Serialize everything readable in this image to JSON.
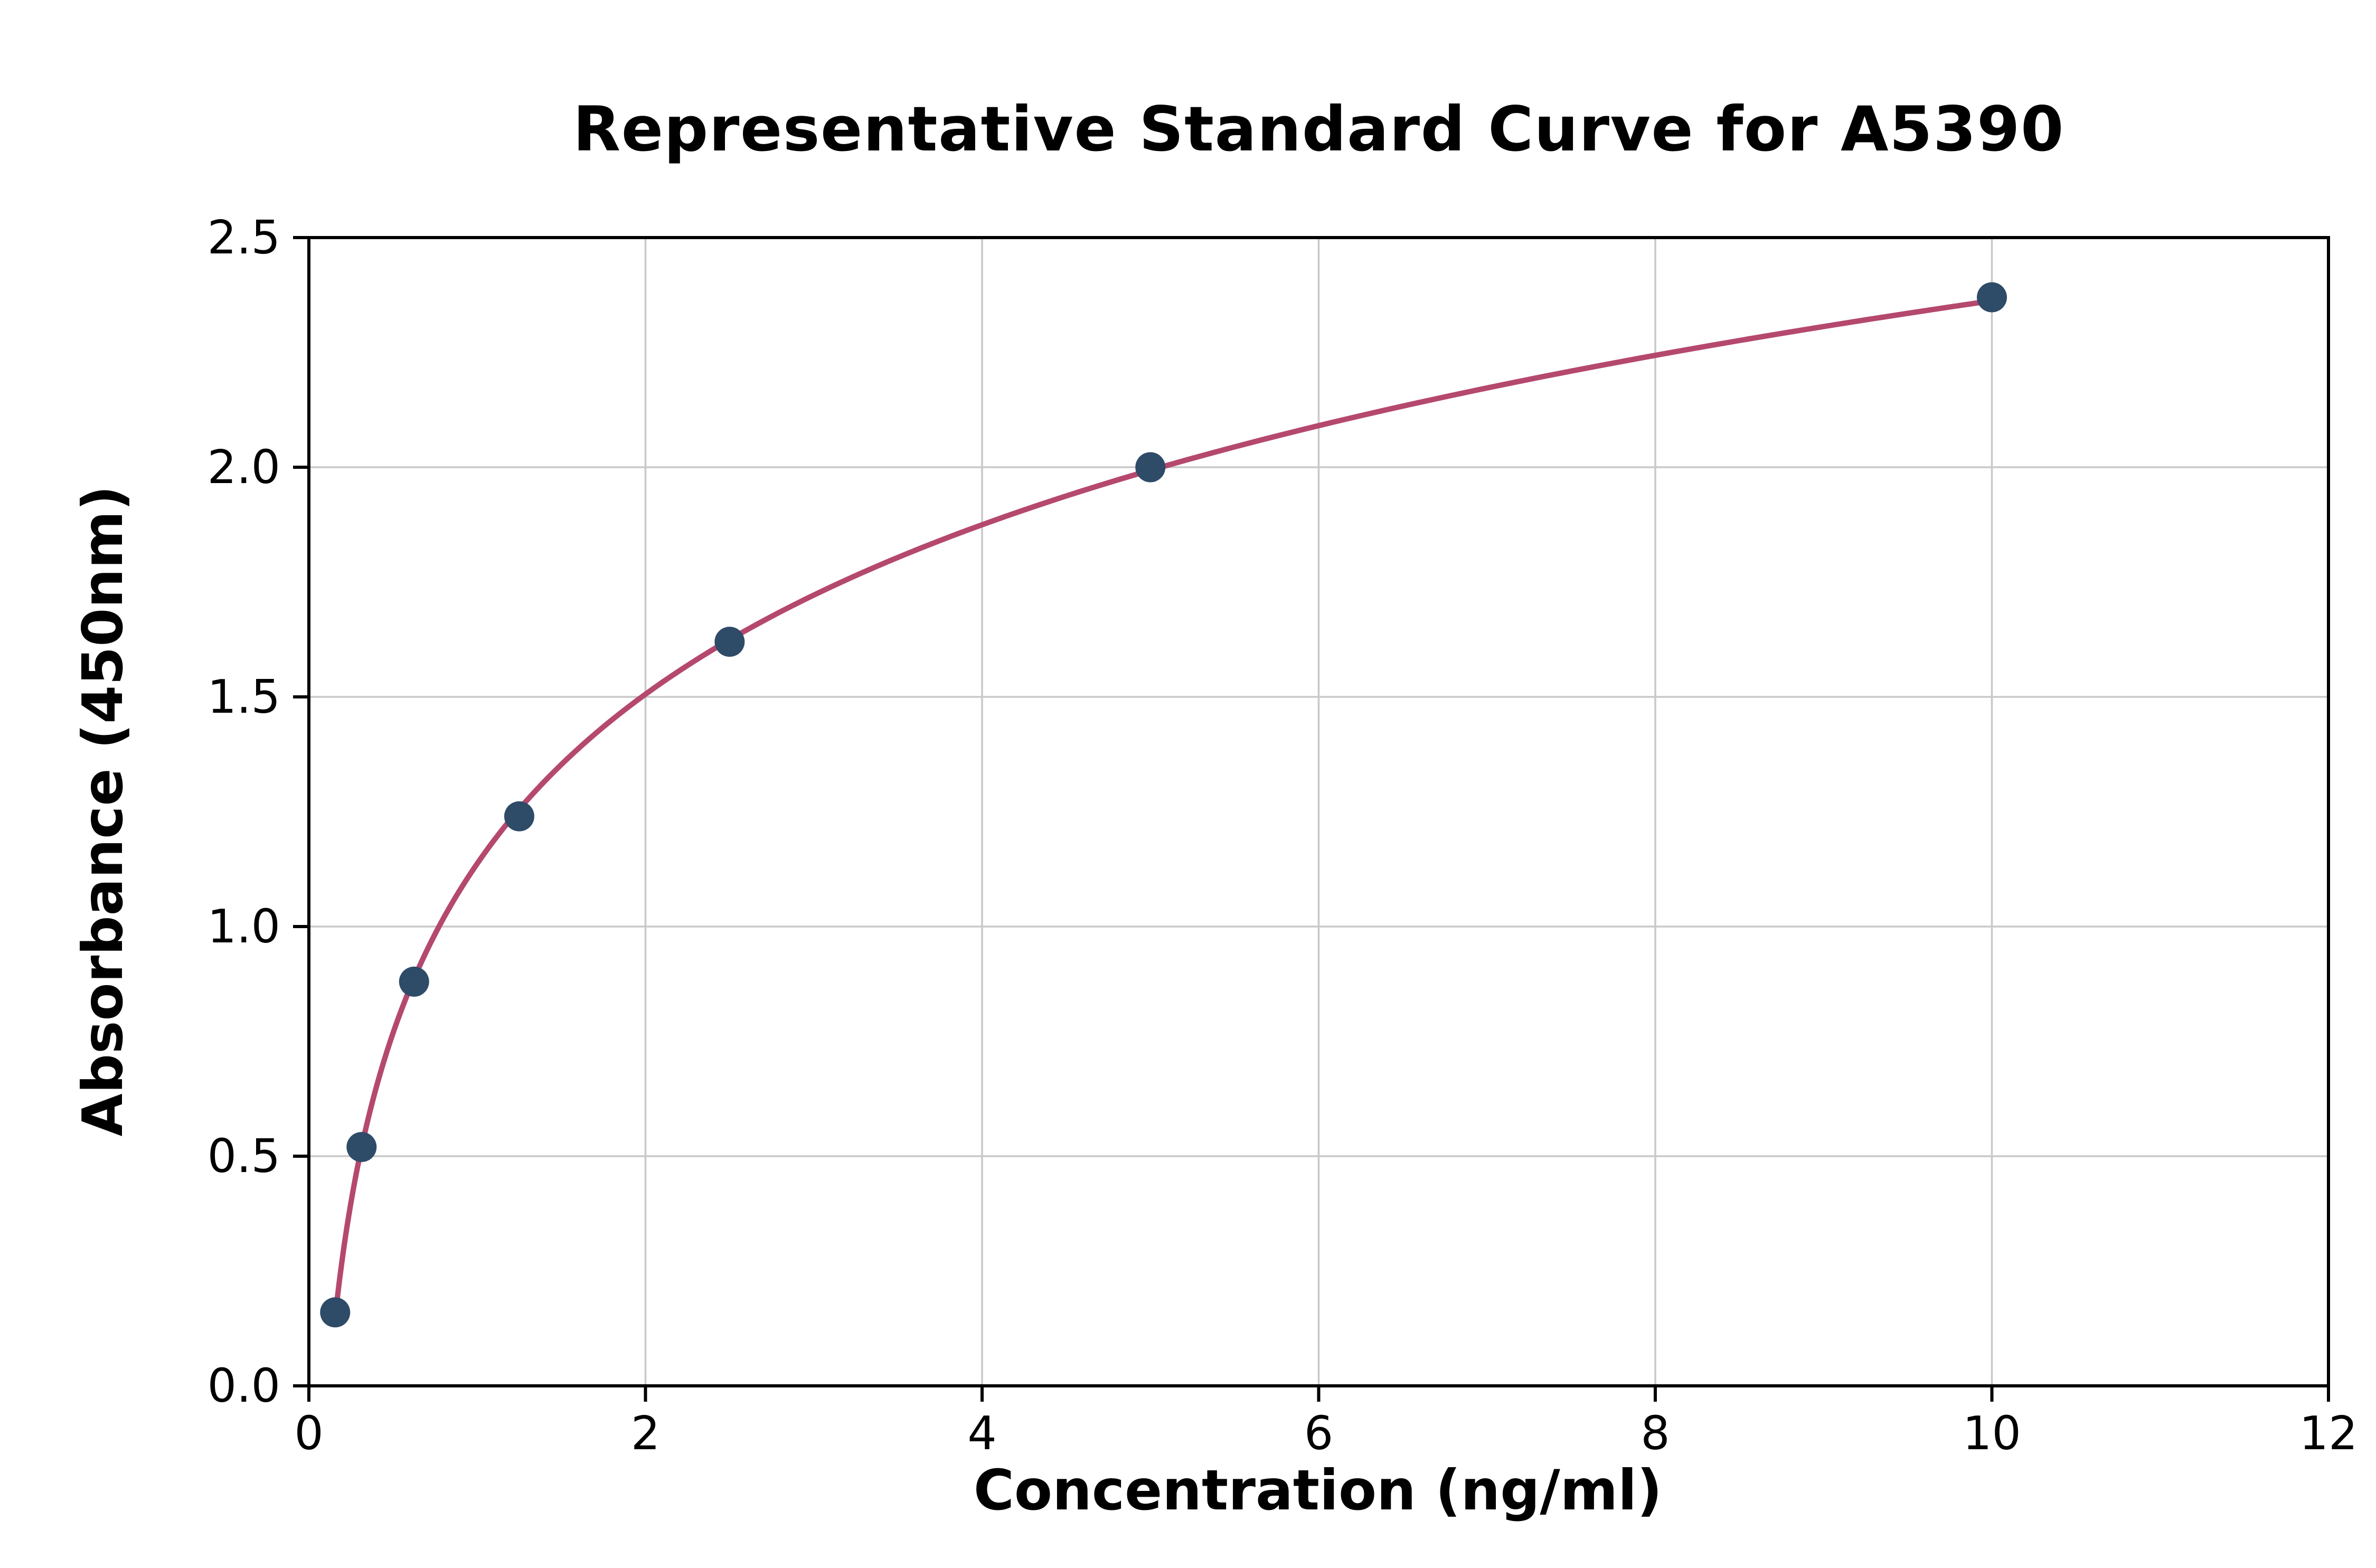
{
  "chart_data": {
    "type": "line",
    "title": "Representative Standard Curve for A5390",
    "xlabel": "Concentration (ng/ml)",
    "ylabel": "Absorbance (450nm)",
    "x": [
      0.156,
      0.313,
      0.625,
      1.25,
      2.5,
      5,
      10
    ],
    "y": [
      0.16,
      0.52,
      0.88,
      1.24,
      1.62,
      2.0,
      2.37
    ],
    "xlim": [
      0,
      12
    ],
    "ylim": [
      0,
      2.5
    ],
    "xticks": [
      0,
      2,
      4,
      6,
      8,
      10,
      12
    ],
    "xtick_labels": [
      "0",
      "2",
      "4",
      "6",
      "8",
      "10",
      "12"
    ],
    "yticks": [
      0,
      0.5,
      1.0,
      1.5,
      2.0,
      2.5
    ],
    "ytick_labels": [
      "0.0",
      "0.5",
      "1.0",
      "1.5",
      "2.0",
      "2.5"
    ],
    "grid": true,
    "legend_position": "none",
    "curve_fit": "logarithmic",
    "line_color": "#b5486e",
    "marker_color": "#2e4b68",
    "grid_color": "#c9c9c9",
    "spine_color": "#000000"
  }
}
